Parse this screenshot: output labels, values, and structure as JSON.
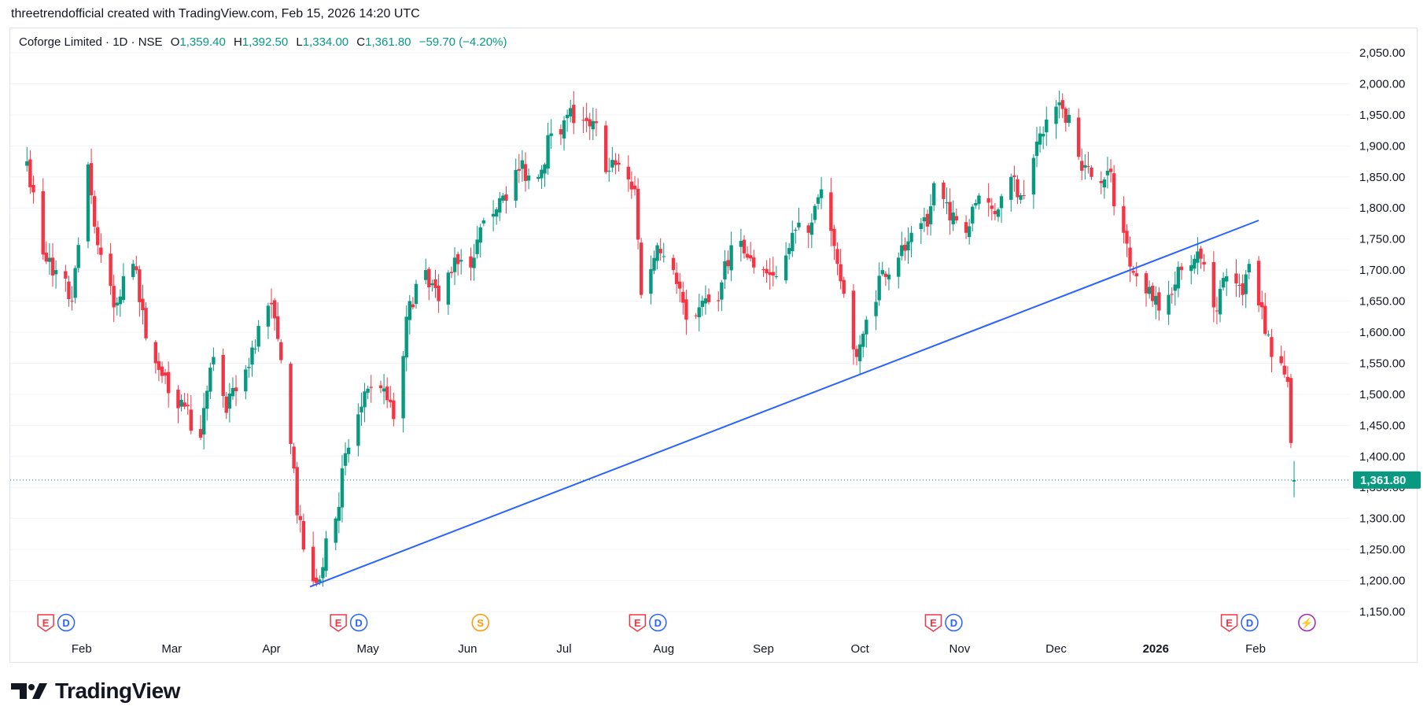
{
  "header": {
    "attribution": "threetrendofficial created with TradingView.com, Feb 15, 2026 14:20 UTC"
  },
  "legend": {
    "symbol": "Coforge Limited · 1D · NSE",
    "open_label": "O",
    "open": "1,359.40",
    "high_label": "H",
    "high": "1,392.50",
    "low_label": "L",
    "low": "1,334.00",
    "close_label": "C",
    "close": "1,361.80",
    "change": "−59.70 (−4.20%)"
  },
  "brand": {
    "name": "TradingView"
  },
  "colors": {
    "up": "#089981",
    "down": "#f23645",
    "trendline": "#2962ff",
    "grid": "#f0f3fa",
    "price_tag": "#089981"
  },
  "chart_data": {
    "type": "candlestick",
    "instrument": "Coforge Limited",
    "interval": "1D",
    "exchange": "NSE",
    "ylim": [
      1125,
      2075
    ],
    "yticks": [
      1150,
      1200,
      1250,
      1300,
      1350,
      1400,
      1450,
      1500,
      1550,
      1600,
      1650,
      1700,
      1750,
      1800,
      1850,
      1900,
      1950,
      2000,
      2050
    ],
    "ytick_labels": [
      "1,150.00",
      "1,200.00",
      "1,250.00",
      "1,300.00",
      "1,350.00",
      "1,400.00",
      "1,450.00",
      "1,500.00",
      "1,550.00",
      "1,600.00",
      "1,650.00",
      "1,700.00",
      "1,750.00",
      "1,800.00",
      "1,850.00",
      "1,900.00",
      "1,950.00",
      "2,000.00",
      "2,050.00"
    ],
    "x_month_labels": [
      "Feb",
      "Mar",
      "Apr",
      "May",
      "Jun",
      "Jul",
      "Aug",
      "Sep",
      "Oct",
      "Nov",
      "Dec",
      "2026",
      "Feb"
    ],
    "last_price": 1361.8,
    "last_price_label": "1,361.80",
    "anchors": [
      {
        "d": "2025-01-15",
        "c": 1875
      },
      {
        "d": "2025-01-20",
        "c": 1725
      },
      {
        "d": "2025-01-24",
        "c": 1700
      },
      {
        "d": "2025-01-29",
        "c": 1650
      },
      {
        "d": "2025-02-03",
        "c": 1870
      },
      {
        "d": "2025-02-06",
        "c": 1740
      },
      {
        "d": "2025-02-11",
        "c": 1640
      },
      {
        "d": "2025-02-17",
        "c": 1710
      },
      {
        "d": "2025-02-21",
        "c": 1590
      },
      {
        "d": "2025-02-27",
        "c": 1530
      },
      {
        "d": "2025-03-05",
        "c": 1480
      },
      {
        "d": "2025-03-10",
        "c": 1430
      },
      {
        "d": "2025-03-14",
        "c": 1560
      },
      {
        "d": "2025-03-18",
        "c": 1470
      },
      {
        "d": "2025-03-24",
        "c": 1540
      },
      {
        "d": "2025-03-28",
        "c": 1610
      },
      {
        "d": "2025-04-01",
        "c": 1645
      },
      {
        "d": "2025-04-04",
        "c": 1555
      },
      {
        "d": "2025-04-07",
        "c": 1420
      },
      {
        "d": "2025-04-09",
        "c": 1305
      },
      {
        "d": "2025-04-11",
        "c": 1250
      },
      {
        "d": "2025-04-15",
        "c": 1196
      },
      {
        "d": "2025-04-21",
        "c": 1300
      },
      {
        "d": "2025-04-24",
        "c": 1405
      },
      {
        "d": "2025-04-29",
        "c": 1480
      },
      {
        "d": "2025-05-05",
        "c": 1510
      },
      {
        "d": "2025-05-09",
        "c": 1460
      },
      {
        "d": "2025-05-14",
        "c": 1650
      },
      {
        "d": "2025-05-19",
        "c": 1700
      },
      {
        "d": "2025-05-23",
        "c": 1650
      },
      {
        "d": "2025-05-28",
        "c": 1720
      },
      {
        "d": "2025-06-03",
        "c": 1720
      },
      {
        "d": "2025-06-06",
        "c": 1780
      },
      {
        "d": "2025-06-12",
        "c": 1820
      },
      {
        "d": "2025-06-17",
        "c": 1860
      },
      {
        "d": "2025-06-23",
        "c": 1850
      },
      {
        "d": "2025-06-27",
        "c": 1920
      },
      {
        "d": "2025-07-02",
        "c": 1950
      },
      {
        "d": "2025-07-08",
        "c": 1940
      },
      {
        "d": "2025-07-10",
        "c": 1940
      },
      {
        "d": "2025-07-15",
        "c": 1860
      },
      {
        "d": "2025-07-18",
        "c": 1870
      },
      {
        "d": "2025-07-23",
        "c": 1830
      },
      {
        "d": "2025-07-25",
        "c": 1660
      },
      {
        "d": "2025-07-30",
        "c": 1740
      },
      {
        "d": "2025-08-04",
        "c": 1700
      },
      {
        "d": "2025-08-08",
        "c": 1620
      },
      {
        "d": "2025-08-12",
        "c": 1640
      },
      {
        "d": "2025-08-18",
        "c": 1650
      },
      {
        "d": "2025-08-22",
        "c": 1740
      },
      {
        "d": "2025-08-27",
        "c": 1720
      },
      {
        "d": "2025-09-01",
        "c": 1700
      },
      {
        "d": "2025-09-05",
        "c": 1690
      },
      {
        "d": "2025-09-10",
        "c": 1760
      },
      {
        "d": "2025-09-15",
        "c": 1760
      },
      {
        "d": "2025-09-19",
        "c": 1830
      },
      {
        "d": "2025-09-24",
        "c": 1710
      },
      {
        "d": "2025-09-30",
        "c": 1560
      },
      {
        "d": "2025-10-03",
        "c": 1620
      },
      {
        "d": "2025-10-08",
        "c": 1700
      },
      {
        "d": "2025-10-13",
        "c": 1720
      },
      {
        "d": "2025-10-17",
        "c": 1760
      },
      {
        "d": "2025-10-22",
        "c": 1770
      },
      {
        "d": "2025-10-24",
        "c": 1840
      },
      {
        "d": "2025-10-29",
        "c": 1780
      },
      {
        "d": "2025-11-03",
        "c": 1760
      },
      {
        "d": "2025-11-07",
        "c": 1820
      },
      {
        "d": "2025-11-12",
        "c": 1790
      },
      {
        "d": "2025-11-17",
        "c": 1850
      },
      {
        "d": "2025-11-21",
        "c": 1820
      },
      {
        "d": "2025-11-26",
        "c": 1920
      },
      {
        "d": "2025-12-02",
        "c": 1970
      },
      {
        "d": "2025-12-05",
        "c": 1950
      },
      {
        "d": "2025-12-09",
        "c": 1860
      },
      {
        "d": "2025-12-12",
        "c": 1850
      },
      {
        "d": "2025-12-17",
        "c": 1860
      },
      {
        "d": "2025-12-22",
        "c": 1760
      },
      {
        "d": "2025-12-26",
        "c": 1690
      },
      {
        "d": "2025-12-31",
        "c": 1650
      },
      {
        "d": "2026-01-05",
        "c": 1660
      },
      {
        "d": "2026-01-09",
        "c": 1700
      },
      {
        "d": "2026-01-14",
        "c": 1730
      },
      {
        "d": "2026-01-19",
        "c": 1640
      },
      {
        "d": "2026-01-23",
        "c": 1690
      },
      {
        "d": "2026-01-28",
        "c": 1660
      },
      {
        "d": "2026-01-30",
        "c": 1710
      },
      {
        "d": "2026-02-03",
        "c": 1640
      },
      {
        "d": "2026-02-06",
        "c": 1560
      },
      {
        "d": "2026-02-09",
        "c": 1550
      },
      {
        "d": "2026-02-11",
        "c": 1520
      },
      {
        "d": "2026-02-12",
        "c": 1421.5
      },
      {
        "d": "2026-02-13",
        "c": 1361.8
      }
    ],
    "trendline": {
      "start": {
        "d": "2025-04-13",
        "y": 1190
      },
      "end": {
        "d": "2026-02-02",
        "y": 1780
      }
    },
    "event_markers": [
      {
        "d": "2025-01-24",
        "items": [
          "E",
          "D"
        ]
      },
      {
        "d": "2025-04-25",
        "items": [
          "E",
          "D"
        ]
      },
      {
        "d": "2025-06-05",
        "items": [
          "S"
        ]
      },
      {
        "d": "2025-07-27",
        "items": [
          "E",
          "D"
        ]
      },
      {
        "d": "2025-10-27",
        "items": [
          "E",
          "D"
        ]
      },
      {
        "d": "2026-01-27",
        "items": [
          "E",
          "D"
        ]
      },
      {
        "d": "2026-02-17",
        "items": [
          "⚡"
        ]
      }
    ]
  }
}
